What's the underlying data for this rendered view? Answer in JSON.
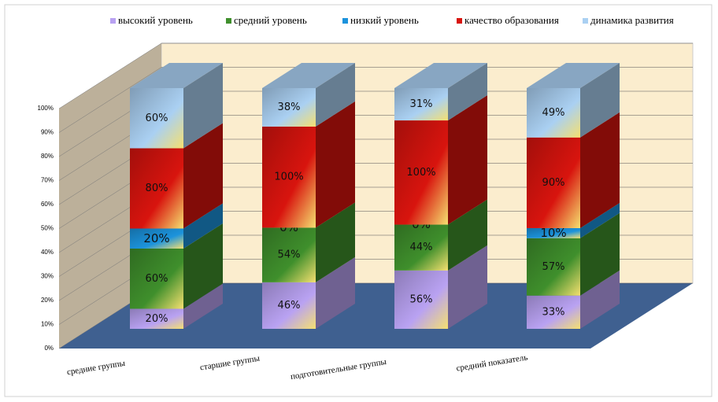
{
  "chart_data": {
    "type": "bar",
    "stacking": "percent",
    "categories": [
      "средние группы",
      "старшие группы",
      "подготовительные группы",
      "средний показатель"
    ],
    "series": [
      {
        "name": "высокий уровень",
        "color": "#b9a2f2",
        "values": [
          20,
          46,
          56,
          33
        ],
        "value_labels": [
          "20%",
          "46%",
          "56%",
          "33%"
        ]
      },
      {
        "name": "средний уровень",
        "color": "#3f8f2c",
        "values": [
          60,
          54,
          44,
          57
        ],
        "value_labels": [
          "60%",
          "54%",
          "44%",
          "57%"
        ]
      },
      {
        "name": "низкий уровень",
        "color": "#1c93dc",
        "values": [
          20,
          0,
          0,
          10
        ],
        "value_labels": [
          "20%",
          "0%",
          "0%",
          "10%"
        ]
      },
      {
        "name": "качество образования",
        "color": "#d8140e",
        "values": [
          80,
          100,
          100,
          90
        ],
        "value_labels": [
          "80%",
          "100%",
          "100%",
          "90%"
        ]
      },
      {
        "name": "динамика развития",
        "color": "#aad0f2",
        "values": [
          60,
          38,
          31,
          49
        ],
        "value_labels": [
          "60%",
          "38%",
          "31%",
          "49%"
        ]
      }
    ],
    "ylim": [
      0,
      100
    ],
    "yticks": [
      {
        "value": 0,
        "label": "0%"
      },
      {
        "value": 10,
        "label": "10%"
      },
      {
        "value": 20,
        "label": "20%"
      },
      {
        "value": 30,
        "label": "30%"
      },
      {
        "value": 40,
        "label": "40%"
      },
      {
        "value": 50,
        "label": "50%"
      },
      {
        "value": 60,
        "label": "60%"
      },
      {
        "value": 70,
        "label": "70%"
      },
      {
        "value": 80,
        "label": "80%"
      },
      {
        "value": 90,
        "label": "90%"
      },
      {
        "value": 100,
        "label": "100%"
      }
    ],
    "grid": true,
    "legend": "top"
  }
}
